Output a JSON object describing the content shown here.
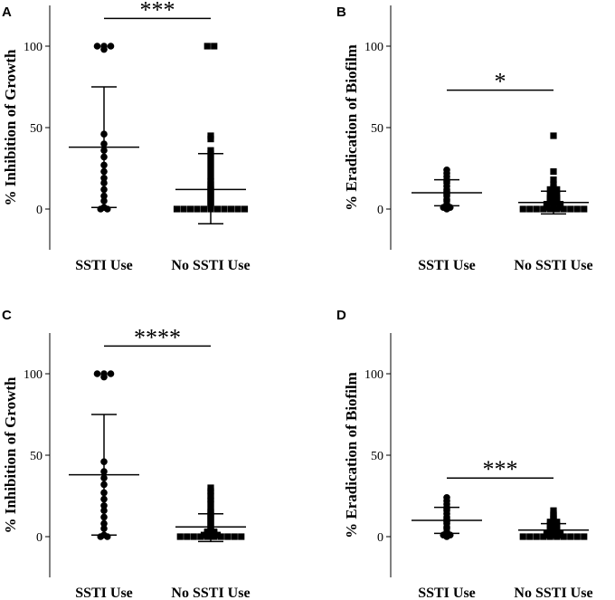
{
  "chart_data": [
    {
      "panel": "A",
      "type": "scatter",
      "ylabel": "% Inhibition of Growth",
      "xlabel": "",
      "categories": [
        "SSTI Use",
        "No SSTI Use"
      ],
      "yticks": [
        0,
        50,
        100
      ],
      "ylim": [
        -25,
        125
      ],
      "significance": "***",
      "series": [
        {
          "name": "SSTI Use",
          "marker": "circle",
          "mean": 38,
          "sd_upper": 75,
          "sd_lower": 1,
          "values": [
            100,
            100,
            98,
            100,
            46,
            40,
            36,
            32,
            27,
            23,
            19,
            16,
            12,
            8,
            5,
            1,
            0,
            0
          ]
        },
        {
          "name": "No SSTI Use",
          "marker": "square",
          "mean": 12,
          "sd_upper": 34,
          "sd_lower": -9,
          "values": [
            100,
            100,
            45,
            43,
            36,
            34,
            32,
            30,
            28,
            26,
            24,
            22,
            20,
            18,
            17,
            15,
            14,
            13,
            12,
            11,
            10,
            9,
            8,
            7,
            6,
            5,
            4,
            3,
            2,
            1,
            0,
            0,
            0,
            0,
            0,
            0,
            0,
            0,
            0,
            0,
            0
          ]
        }
      ]
    },
    {
      "panel": "B",
      "type": "scatter",
      "ylabel": "% Eradication of Biofilm",
      "xlabel": "",
      "categories": [
        "SSTI Use",
        "No SSTI Use"
      ],
      "yticks": [
        0,
        50,
        100
      ],
      "ylim": [
        -25,
        125
      ],
      "significance": "*",
      "series": [
        {
          "name": "SSTI Use",
          "marker": "circle",
          "mean": 10,
          "sd_upper": 18,
          "sd_lower": 2,
          "values": [
            24,
            22,
            20,
            18,
            17,
            16,
            14,
            12,
            11,
            10,
            9,
            8,
            6,
            5,
            3,
            1,
            1,
            0
          ]
        },
        {
          "name": "No SSTI Use",
          "marker": "square",
          "mean": 4,
          "sd_upper": 11,
          "sd_lower": -3,
          "values": [
            45,
            23,
            18,
            15,
            13,
            12,
            12,
            11,
            10,
            9,
            9,
            8,
            7,
            7,
            6,
            6,
            5,
            5,
            4,
            4,
            3,
            3,
            3,
            2,
            2,
            2,
            1,
            1,
            1,
            0,
            0,
            0,
            0,
            0,
            0,
            0,
            0,
            0,
            0
          ]
        }
      ]
    },
    {
      "panel": "C",
      "type": "scatter",
      "ylabel": "% Inhibition of Growth",
      "xlabel": "",
      "categories": [
        "SSTI Use",
        "No SSTI Use"
      ],
      "yticks": [
        0,
        50,
        100
      ],
      "ylim": [
        -25,
        125
      ],
      "significance": "****",
      "series": [
        {
          "name": "SSTI Use",
          "marker": "circle",
          "mean": 38,
          "sd_upper": 75,
          "sd_lower": 1,
          "values": [
            100,
            100,
            98,
            100,
            46,
            40,
            36,
            32,
            27,
            23,
            19,
            16,
            12,
            8,
            5,
            1,
            0,
            0
          ]
        },
        {
          "name": "No SSTI Use",
          "marker": "square",
          "mean": 6,
          "sd_upper": 14,
          "sd_lower": -3,
          "values": [
            30,
            28,
            27,
            25,
            23,
            22,
            20,
            18,
            16,
            15,
            14,
            13,
            12,
            11,
            10,
            9,
            8,
            7,
            6,
            5,
            4,
            3,
            3,
            2,
            2,
            1,
            1,
            1,
            0,
            0,
            0,
            0,
            0,
            0,
            0,
            0,
            0,
            0
          ]
        }
      ]
    },
    {
      "panel": "D",
      "type": "scatter",
      "ylabel": "% Eradication of Biofilm",
      "xlabel": "",
      "categories": [
        "SSTI Use",
        "No SSTI Use"
      ],
      "yticks": [
        0,
        50,
        100
      ],
      "ylim": [
        -25,
        125
      ],
      "significance": "***",
      "series": [
        {
          "name": "SSTI Use",
          "marker": "circle",
          "mean": 10,
          "sd_upper": 18,
          "sd_lower": 2,
          "values": [
            24,
            22,
            20,
            18,
            17,
            16,
            14,
            12,
            11,
            10,
            9,
            8,
            6,
            5,
            3,
            1,
            1,
            0
          ]
        },
        {
          "name": "No SSTI Use",
          "marker": "square",
          "mean": 4,
          "sd_upper": 8,
          "sd_lower": 0,
          "values": [
            16,
            14,
            13,
            12,
            11,
            10,
            9,
            9,
            8,
            7,
            7,
            6,
            5,
            5,
            4,
            4,
            3,
            3,
            2,
            2,
            2,
            1,
            1,
            1,
            0,
            0,
            0,
            0,
            0,
            0,
            0,
            0,
            0,
            0
          ]
        }
      ]
    }
  ]
}
